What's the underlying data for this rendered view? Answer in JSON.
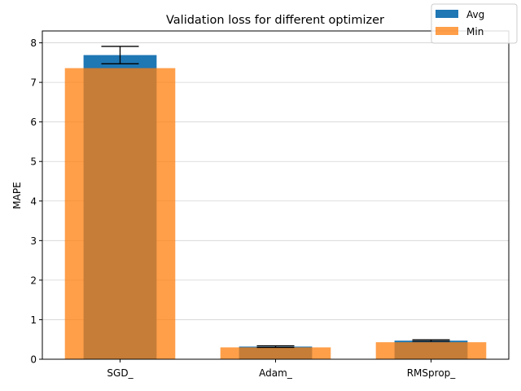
{
  "chart_data": {
    "type": "bar",
    "title": "Validation loss for different optimizer",
    "xlabel": "",
    "ylabel": "MAPE",
    "categories": [
      "SGD_",
      "Adam_",
      "RMSprop_"
    ],
    "ylim": [
      0,
      8.3
    ],
    "yticks": [
      0,
      1,
      2,
      3,
      4,
      5,
      6,
      7,
      8
    ],
    "grid": "horizontal",
    "legend_position": "top-right",
    "series": [
      {
        "name": "Avg",
        "color": "#1f77b4",
        "values": [
          7.69,
          0.32,
          0.47
        ],
        "error": [
          0.22,
          0.02,
          0.02
        ]
      },
      {
        "name": "Min",
        "color": "#ff7f0e",
        "opacity": 0.75,
        "values": [
          7.36,
          0.3,
          0.43
        ]
      }
    ]
  }
}
